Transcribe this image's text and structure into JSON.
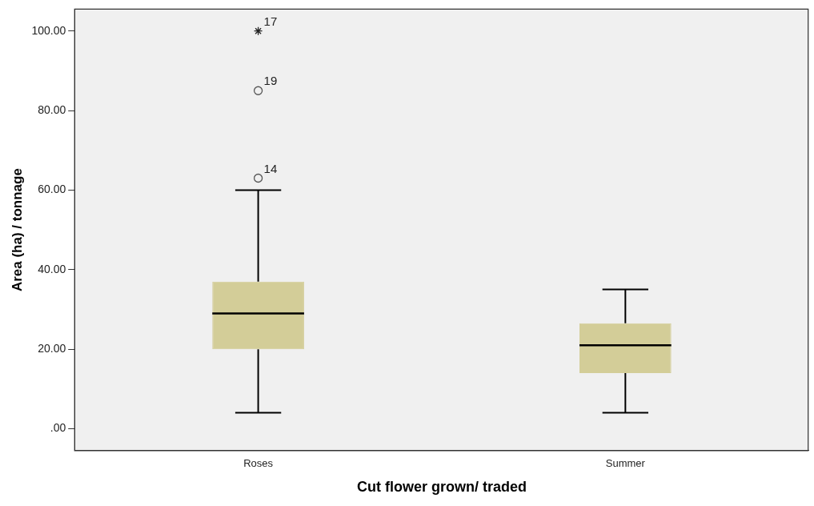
{
  "chart_data": {
    "type": "box",
    "xlabel": "Cut flower grown/ traded",
    "ylabel": "Area (ha) / tonnage",
    "categories": [
      "Roses",
      "Summer"
    ],
    "series": [
      {
        "color": "#d3cd98",
        "boxes": [
          {
            "low": 4,
            "q1": 20,
            "median": 29,
            "q3": 37,
            "high": 60
          },
          {
            "low": 4,
            "q1": 14,
            "median": 21,
            "q3": 26.5,
            "high": 35
          }
        ]
      },
      {
        "type": "scatter",
        "x": [
          "Roses",
          "Roses"
        ],
        "values": [
          85,
          63
        ],
        "marker": "circle"
      },
      {
        "type": "scatter",
        "x": [
          "Roses"
        ],
        "values": [
          100
        ],
        "marker": "cross"
      }
    ],
    "annotations": [
      {
        "text": "17",
        "x": "Roses",
        "y": 100
      },
      {
        "text": "19",
        "x": "Roses",
        "y": 85
      },
      {
        "text": "14",
        "x": "Roses",
        "y": 63
      }
    ],
    "ylim": [
      -5.5,
      105.5
    ],
    "yticks": [
      {
        "value": 0,
        "label": ".00"
      },
      {
        "value": 20,
        "label": "20.00"
      },
      {
        "value": 40,
        "label": "40.00"
      },
      {
        "value": 60,
        "label": "60.00"
      },
      {
        "value": 80,
        "label": "80.00"
      },
      {
        "value": 100,
        "label": "100.00"
      }
    ],
    "grid": false
  }
}
